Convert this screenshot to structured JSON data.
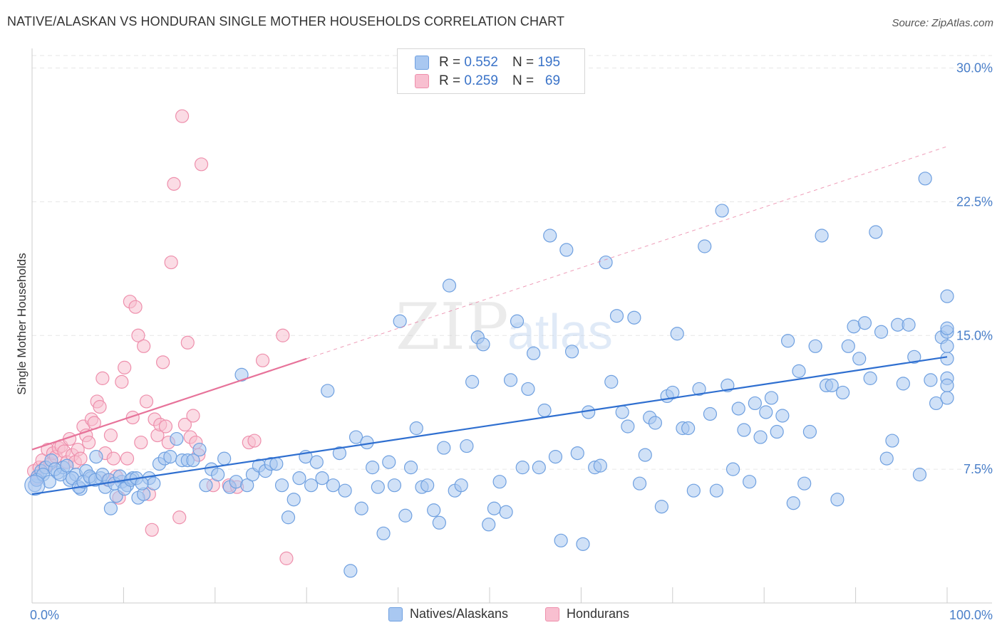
{
  "title": "NATIVE/ALASKAN VS HONDURAN SINGLE MOTHER HOUSEHOLDS CORRELATION CHART",
  "source": "Source: ZipAtlas.com",
  "watermark": {
    "zip": "ZIP",
    "atlas": "atlas"
  },
  "legend_stats": [
    {
      "r_label": "R =",
      "r_value": "0.552",
      "n_label": "N =",
      "n_value": "195",
      "fill": "#a9c8f1",
      "stroke": "#6fa0e0"
    },
    {
      "r_label": "R =",
      "r_value": "0.259",
      "n_label": "N =",
      "n_value": "69",
      "fill": "#f8bfd0",
      "stroke": "#ee8fac"
    }
  ],
  "colors": {
    "blue_fill": "#a9c8f1",
    "blue_stroke": "#6fa0e0",
    "blue_line": "#2f6fd0",
    "pink_fill": "#f8bfd0",
    "pink_stroke": "#ee8fac",
    "pink_line": "#e7739a",
    "grid": "#e6e6e6",
    "tick_text": "#4a7fc9"
  },
  "chart_data": {
    "type": "scatter",
    "title": "NATIVE/ALASKAN VS HONDURAN SINGLE MOTHER HOUSEHOLDS CORRELATION CHART",
    "ylabel": "Single Mother Households",
    "xlabel": "",
    "xlim": [
      0,
      100
    ],
    "ylim": [
      0,
      30.7
    ],
    "x_tick_labels": [
      "0.0%",
      "100.0%"
    ],
    "y_ticks": [
      7.5,
      15.0,
      22.5,
      30.0
    ],
    "y_tick_labels": [
      "7.5%",
      "15.0%",
      "22.5%",
      "30.0%"
    ],
    "grid": true,
    "legend_position": "bottom-center",
    "series": [
      {
        "name": "Natives/Alaskans",
        "color": "#6fa0e0",
        "trend": {
          "x": [
            0,
            100
          ],
          "y": [
            6.1,
            13.8
          ]
        },
        "points": [
          [
            0.3,
            6.6
          ],
          [
            0.6,
            7.1
          ],
          [
            1.0,
            7.4
          ],
          [
            1.5,
            7.6
          ],
          [
            2.1,
            8.0
          ],
          [
            2.8,
            7.3
          ],
          [
            3.4,
            7.6
          ],
          [
            4.1,
            6.9
          ],
          [
            4.8,
            7.2
          ],
          [
            5.3,
            6.4
          ],
          [
            5.9,
            7.4
          ],
          [
            6.4,
            7.0
          ],
          [
            7.0,
            8.2
          ],
          [
            7.5,
            7.0
          ],
          [
            8.0,
            6.5
          ],
          [
            8.6,
            5.3
          ],
          [
            9.2,
            6.0
          ],
          [
            9.8,
            6.8
          ],
          [
            10.4,
            6.6
          ],
          [
            11.0,
            7.0
          ],
          [
            11.6,
            5.9
          ],
          [
            12.2,
            6.1
          ],
          [
            12.8,
            7.0
          ],
          [
            13.3,
            6.7
          ],
          [
            13.9,
            7.8
          ],
          [
            14.5,
            8.1
          ],
          [
            15.1,
            8.2
          ],
          [
            15.8,
            9.2
          ],
          [
            16.4,
            8.0
          ],
          [
            17.0,
            8.0
          ],
          [
            17.6,
            8.0
          ],
          [
            18.3,
            8.6
          ],
          [
            19.0,
            6.6
          ],
          [
            19.6,
            7.5
          ],
          [
            20.3,
            7.2
          ],
          [
            21.0,
            8.1
          ],
          [
            21.6,
            6.5
          ],
          [
            22.3,
            6.8
          ],
          [
            22.9,
            12.8
          ],
          [
            23.5,
            6.6
          ],
          [
            24.1,
            7.2
          ],
          [
            24.8,
            7.7
          ],
          [
            25.5,
            7.4
          ],
          [
            26.1,
            7.8
          ],
          [
            26.7,
            7.8
          ],
          [
            27.3,
            6.6
          ],
          [
            28.0,
            4.8
          ],
          [
            28.6,
            5.8
          ],
          [
            29.2,
            7.0
          ],
          [
            29.9,
            8.2
          ],
          [
            30.5,
            6.6
          ],
          [
            31.1,
            7.9
          ],
          [
            31.7,
            7.0
          ],
          [
            32.3,
            11.9
          ],
          [
            32.9,
            6.6
          ],
          [
            33.6,
            8.4
          ],
          [
            34.2,
            6.3
          ],
          [
            34.8,
            1.8
          ],
          [
            35.4,
            9.3
          ],
          [
            36.0,
            5.3
          ],
          [
            36.6,
            9.0
          ],
          [
            37.2,
            7.6
          ],
          [
            37.8,
            6.5
          ],
          [
            38.4,
            3.9
          ],
          [
            39.0,
            7.9
          ],
          [
            39.6,
            6.6
          ],
          [
            40.2,
            15.8
          ],
          [
            40.8,
            4.9
          ],
          [
            41.4,
            7.6
          ],
          [
            42.0,
            9.8
          ],
          [
            42.6,
            6.5
          ],
          [
            43.2,
            6.6
          ],
          [
            43.9,
            5.2
          ],
          [
            44.5,
            4.5
          ],
          [
            45.0,
            8.7
          ],
          [
            45.6,
            17.8
          ],
          [
            46.2,
            6.3
          ],
          [
            46.9,
            6.6
          ],
          [
            47.5,
            8.8
          ],
          [
            48.1,
            12.4
          ],
          [
            48.7,
            14.9
          ],
          [
            49.3,
            14.5
          ],
          [
            49.9,
            4.4
          ],
          [
            50.5,
            5.3
          ],
          [
            51.1,
            6.8
          ],
          [
            51.8,
            5.1
          ],
          [
            52.3,
            12.5
          ],
          [
            53.0,
            15.8
          ],
          [
            53.6,
            7.6
          ],
          [
            54.2,
            12.0
          ],
          [
            54.8,
            14.0
          ],
          [
            55.4,
            7.6
          ],
          [
            56.0,
            10.8
          ],
          [
            56.6,
            20.6
          ],
          [
            57.2,
            8.2
          ],
          [
            57.8,
            3.5
          ],
          [
            58.4,
            19.8
          ],
          [
            59.0,
            14.1
          ],
          [
            59.6,
            8.4
          ],
          [
            60.2,
            3.3
          ],
          [
            60.8,
            10.7
          ],
          [
            61.5,
            7.6
          ],
          [
            62.1,
            7.7
          ],
          [
            62.7,
            19.1
          ],
          [
            63.3,
            12.4
          ],
          [
            63.9,
            16.1
          ],
          [
            64.5,
            10.7
          ],
          [
            65.1,
            9.9
          ],
          [
            65.8,
            16.0
          ],
          [
            66.4,
            6.7
          ],
          [
            67.0,
            8.3
          ],
          [
            67.5,
            10.4
          ],
          [
            68.1,
            10.1
          ],
          [
            68.8,
            5.4
          ],
          [
            69.4,
            11.6
          ],
          [
            70.0,
            11.8
          ],
          [
            70.5,
            15.1
          ],
          [
            71.1,
            9.8
          ],
          [
            71.7,
            9.8
          ],
          [
            72.3,
            6.3
          ],
          [
            72.9,
            12.0
          ],
          [
            73.5,
            20.0
          ],
          [
            74.1,
            10.6
          ],
          [
            74.8,
            6.3
          ],
          [
            75.4,
            22.0
          ],
          [
            76.0,
            12.2
          ],
          [
            76.6,
            7.5
          ],
          [
            77.2,
            10.9
          ],
          [
            77.8,
            9.7
          ],
          [
            78.4,
            6.8
          ],
          [
            79.0,
            11.2
          ],
          [
            79.6,
            9.3
          ],
          [
            80.2,
            10.7
          ],
          [
            80.8,
            11.5
          ],
          [
            81.4,
            9.6
          ],
          [
            82.0,
            10.5
          ],
          [
            82.6,
            14.7
          ],
          [
            83.2,
            5.6
          ],
          [
            83.8,
            13.0
          ],
          [
            84.4,
            6.7
          ],
          [
            85.0,
            9.6
          ],
          [
            85.6,
            14.4
          ],
          [
            86.3,
            20.6
          ],
          [
            86.8,
            12.2
          ],
          [
            87.4,
            12.2
          ],
          [
            88.0,
            5.8
          ],
          [
            88.6,
            11.8
          ],
          [
            89.2,
            14.4
          ],
          [
            89.8,
            15.5
          ],
          [
            90.4,
            13.7
          ],
          [
            91.0,
            15.7
          ],
          [
            91.6,
            12.6
          ],
          [
            92.2,
            20.8
          ],
          [
            92.8,
            15.2
          ],
          [
            93.4,
            8.1
          ],
          [
            94.0,
            9.1
          ],
          [
            94.6,
            15.6
          ],
          [
            95.2,
            12.3
          ],
          [
            95.8,
            15.6
          ],
          [
            96.4,
            13.8
          ],
          [
            97.0,
            7.2
          ],
          [
            97.6,
            23.8
          ],
          [
            98.2,
            12.5
          ],
          [
            98.8,
            11.2
          ],
          [
            99.4,
            14.9
          ],
          [
            100.0,
            12.6
          ],
          [
            100.6,
            15.2
          ],
          [
            101.2,
            13.7
          ],
          [
            101.8,
            15.4
          ],
          [
            102.4,
            14.4
          ],
          [
            103.0,
            12.2
          ],
          [
            103.6,
            11.5
          ],
          [
            104.2,
            17.2
          ],
          [
            0.5,
            6.9
          ],
          [
            1.2,
            7.2
          ],
          [
            1.9,
            6.8
          ],
          [
            2.5,
            7.5
          ],
          [
            3.1,
            7.2
          ],
          [
            3.8,
            7.7
          ],
          [
            4.4,
            7.0
          ],
          [
            5.1,
            6.5
          ],
          [
            5.6,
            6.8
          ],
          [
            6.3,
            7.1
          ],
          [
            6.9,
            6.9
          ],
          [
            7.7,
            7.2
          ],
          [
            8.4,
            6.9
          ],
          [
            9.0,
            6.7
          ],
          [
            9.6,
            7.1
          ],
          [
            10.1,
            6.4
          ],
          [
            10.8,
            6.9
          ],
          [
            11.4,
            7.0
          ],
          [
            12.0,
            6.7
          ]
        ]
      },
      {
        "name": "Hondurans",
        "color": "#ee8fac",
        "trend": {
          "x": [
            0,
            30
          ],
          "y": [
            8.6,
            13.7
          ]
        },
        "points": [
          [
            0.2,
            7.4
          ],
          [
            0.5,
            7.0
          ],
          [
            0.8,
            7.6
          ],
          [
            1.1,
            8.0
          ],
          [
            1.4,
            7.6
          ],
          [
            1.7,
            8.6
          ],
          [
            2.0,
            7.8
          ],
          [
            2.3,
            8.4
          ],
          [
            2.6,
            8.2
          ],
          [
            2.9,
            8.7
          ],
          [
            3.2,
            8.8
          ],
          [
            3.5,
            8.5
          ],
          [
            3.8,
            7.9
          ],
          [
            4.1,
            9.2
          ],
          [
            4.4,
            8.3
          ],
          [
            4.7,
            7.9
          ],
          [
            5.0,
            8.6
          ],
          [
            5.3,
            8.1
          ],
          [
            5.6,
            9.9
          ],
          [
            5.9,
            9.4
          ],
          [
            6.2,
            9.0
          ],
          [
            6.5,
            10.3
          ],
          [
            6.8,
            10.1
          ],
          [
            7.1,
            11.3
          ],
          [
            7.4,
            11.0
          ],
          [
            7.7,
            12.6
          ],
          [
            8.0,
            8.4
          ],
          [
            8.3,
            6.9
          ],
          [
            8.6,
            9.4
          ],
          [
            8.9,
            8.1
          ],
          [
            9.2,
            7.1
          ],
          [
            9.5,
            5.9
          ],
          [
            9.8,
            12.4
          ],
          [
            10.1,
            13.2
          ],
          [
            10.4,
            8.1
          ],
          [
            10.7,
            16.9
          ],
          [
            11.0,
            10.4
          ],
          [
            11.3,
            16.6
          ],
          [
            11.6,
            15.0
          ],
          [
            11.9,
            9.0
          ],
          [
            12.2,
            14.4
          ],
          [
            12.5,
            11.3
          ],
          [
            12.8,
            6.1
          ],
          [
            13.1,
            4.1
          ],
          [
            13.4,
            10.3
          ],
          [
            13.7,
            9.4
          ],
          [
            14.0,
            10.0
          ],
          [
            14.3,
            13.5
          ],
          [
            14.6,
            9.9
          ],
          [
            14.9,
            9.0
          ],
          [
            15.2,
            19.1
          ],
          [
            15.5,
            23.5
          ],
          [
            16.1,
            4.8
          ],
          [
            16.4,
            27.3
          ],
          [
            16.7,
            10.0
          ],
          [
            17.0,
            14.6
          ],
          [
            17.3,
            9.3
          ],
          [
            17.6,
            10.5
          ],
          [
            17.9,
            9.0
          ],
          [
            18.2,
            8.3
          ],
          [
            18.5,
            24.6
          ],
          [
            19.8,
            6.6
          ],
          [
            21.5,
            6.6
          ],
          [
            22.4,
            6.5
          ],
          [
            23.7,
            9.0
          ],
          [
            24.3,
            9.1
          ],
          [
            25.2,
            13.6
          ],
          [
            27.4,
            15.0
          ],
          [
            27.8,
            2.5
          ]
        ]
      }
    ]
  }
}
